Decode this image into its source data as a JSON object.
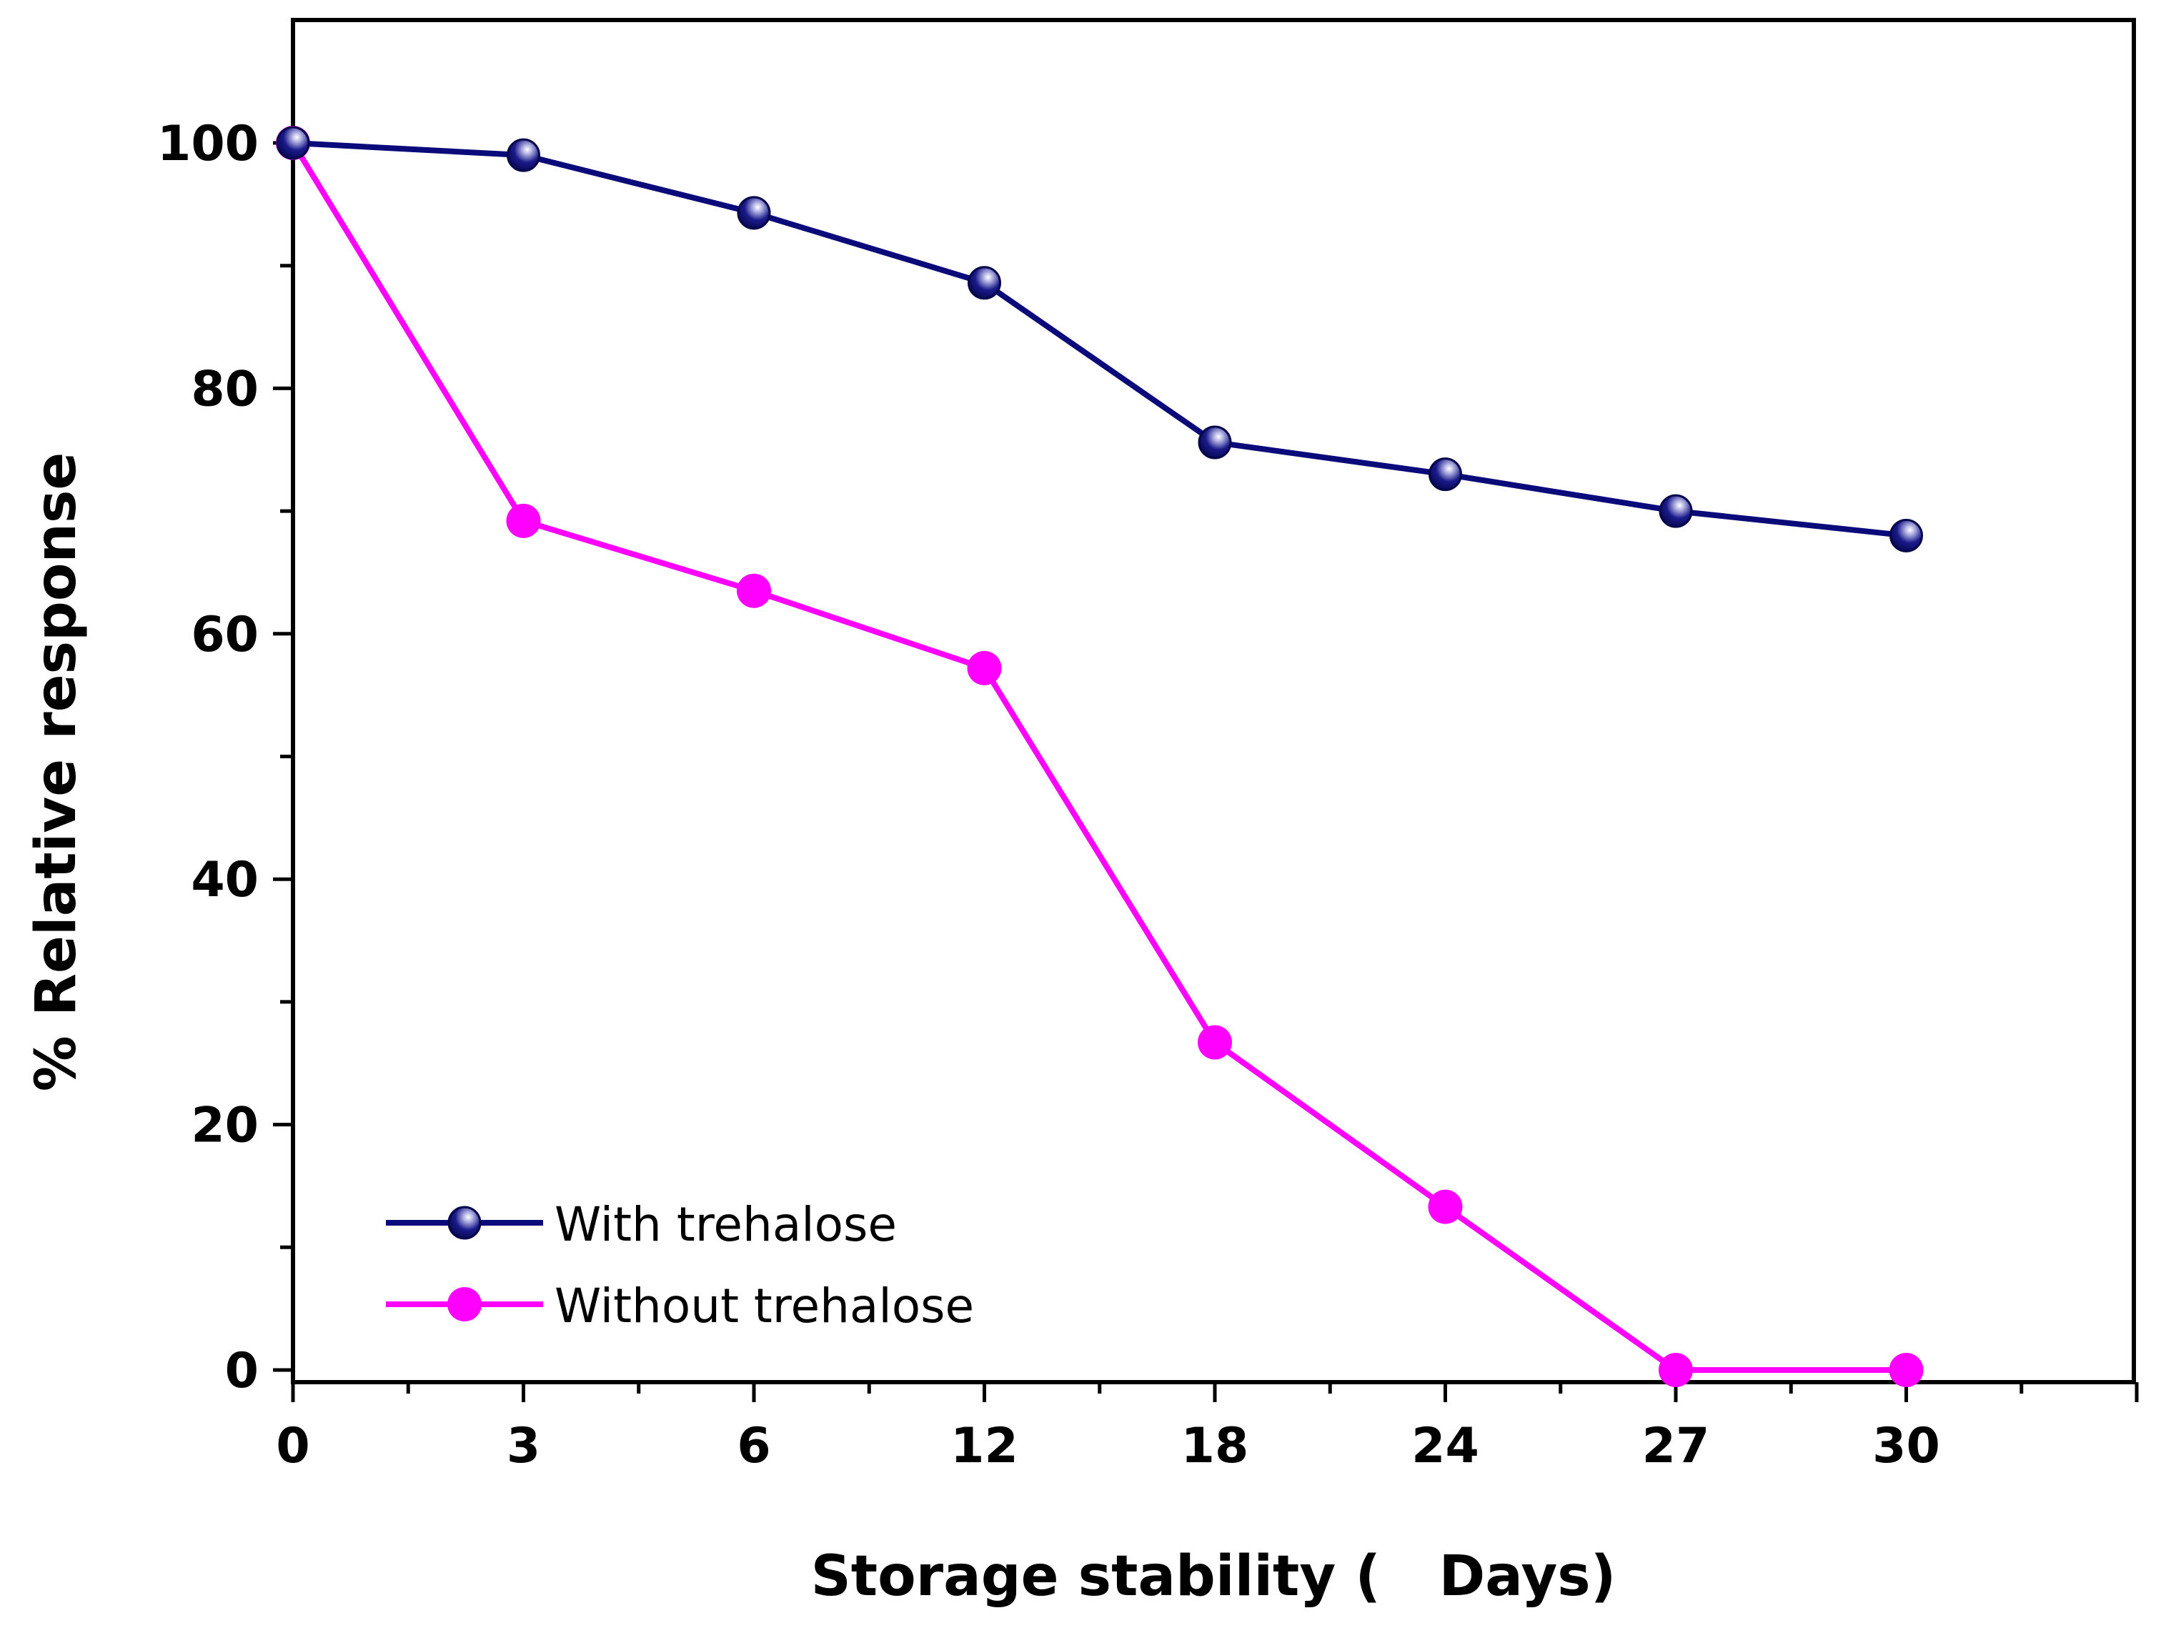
{
  "chart_data": {
    "type": "line",
    "title": "",
    "xlabel": "Storage stability (   Days)",
    "ylabel": "% Relative response",
    "categories": [
      "0",
      "3",
      "6",
      "12",
      "18",
      "24",
      "27",
      "30"
    ],
    "ylim": [
      -2,
      110
    ],
    "yticks": [
      0,
      20,
      40,
      60,
      80,
      100
    ],
    "y_minor_step": 10,
    "grid": false,
    "legend_position": "bottom-left",
    "series": [
      {
        "name": "With trehalose",
        "color": "#0a0a7a",
        "marker": "sphere",
        "values": [
          100,
          99,
          94.3,
          88.6,
          75.6,
          73,
          70,
          68
        ]
      },
      {
        "name": "Without trehalose",
        "color": "#ff00ff",
        "marker": "circle",
        "values": [
          100,
          69.2,
          63.5,
          57.2,
          26.7,
          13.3,
          0,
          0
        ]
      }
    ]
  }
}
